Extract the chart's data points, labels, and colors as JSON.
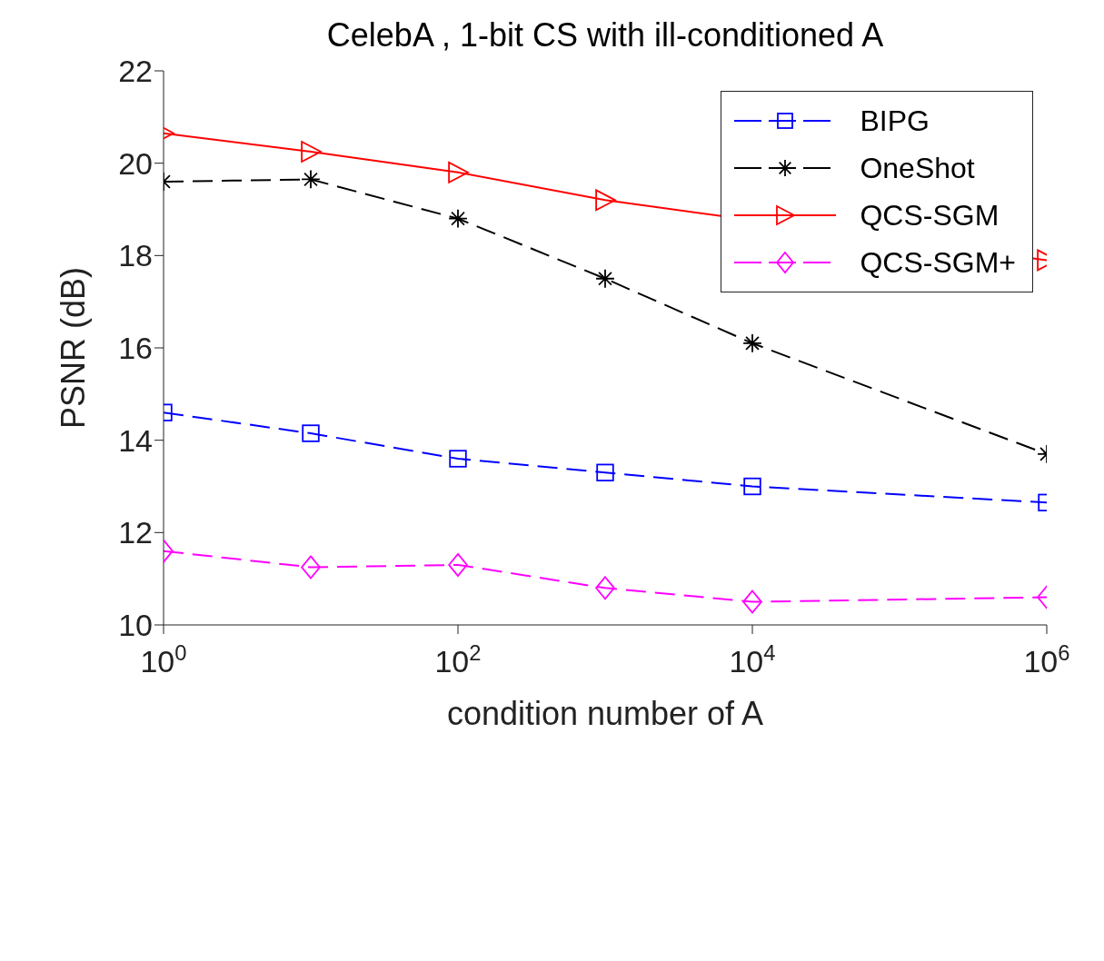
{
  "chart_data": {
    "type": "line",
    "title": "CelebA , 1-bit CS with ill-conditioned A",
    "xlabel": "condition number of A",
    "ylabel": "PSNR (dB)",
    "log": "x",
    "x": [
      1,
      10,
      100,
      1000,
      10000,
      1000000
    ],
    "xlim": [
      1,
      1000000
    ],
    "xticks": [
      {
        "value": 1,
        "label": "10$^{0}$"
      },
      {
        "value": 100,
        "label": "10$^{2}$"
      },
      {
        "value": 10000,
        "label": "10$^{4}$"
      },
      {
        "value": 1000000,
        "label": "10$^{6}$"
      }
    ],
    "ylim": [
      10,
      22
    ],
    "yticks": [
      10,
      12,
      14,
      16,
      18,
      20,
      22
    ],
    "grid": false,
    "legend": "top right",
    "series": [
      {
        "name": "BIPG",
        "color": "#0000ff",
        "marker": "square",
        "line_style": "dashed",
        "values": [
          14.6,
          14.15,
          13.6,
          13.3,
          13.0,
          12.65
        ]
      },
      {
        "name": "OneShot",
        "color": "#000000",
        "marker": "cross",
        "line_style": "dashed",
        "values": [
          19.6,
          19.65,
          18.8,
          17.5,
          16.1,
          13.7
        ]
      },
      {
        "name": "QCS-SGM",
        "color": "#ff0000",
        "marker": "triangle",
        "line_style": "solid",
        "values": [
          20.65,
          20.25,
          19.8,
          19.2,
          null,
          17.9
        ]
      },
      {
        "name": "QCS-SGM+",
        "color": "#ff00ff",
        "marker": "diamond",
        "line_style": "dashed",
        "values": [
          11.6,
          11.25,
          11.3,
          10.8,
          10.5,
          10.6
        ]
      }
    ]
  }
}
